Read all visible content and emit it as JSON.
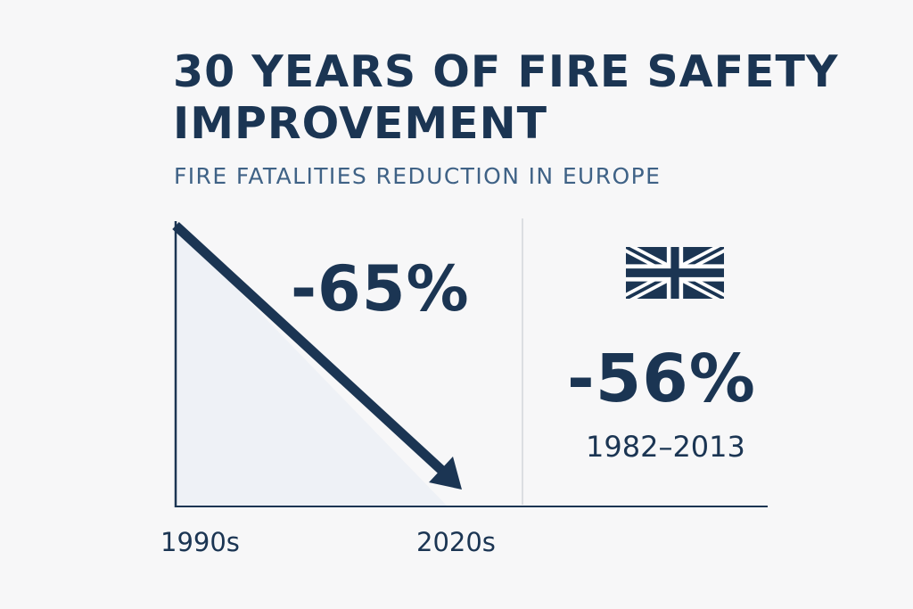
{
  "title": "30 YEARS OF FIRE SAFETY IMPROVEMENT",
  "subtitle": "FIRE FATALITIES REDUCTION IN EUROPE",
  "europe": {
    "change": "-65%",
    "period_start": "1990s",
    "period_end": "2020s"
  },
  "uk": {
    "flag": "union-jack-flag",
    "change": "-56%",
    "period": "1982–2013"
  },
  "colors": {
    "navy": "#1b3553",
    "subtitle_blue": "#3f6286",
    "area_fill": "#eef1f6",
    "divider": "#d3d6db",
    "background": "#f7f7f8"
  }
}
